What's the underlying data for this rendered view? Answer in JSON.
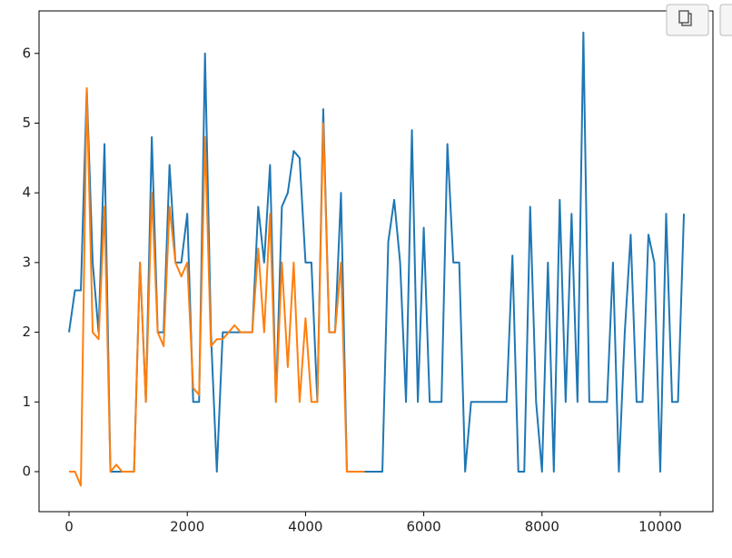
{
  "chart_data": {
    "type": "line",
    "x": [
      0,
      100,
      200,
      300,
      400,
      500,
      600,
      700,
      800,
      900,
      1000,
      1100,
      1200,
      1300,
      1400,
      1500,
      1600,
      1700,
      1800,
      1900,
      2000,
      2100,
      2200,
      2300,
      2400,
      2500,
      2600,
      2700,
      2800,
      2900,
      3000,
      3100,
      3200,
      3300,
      3400,
      3500,
      3600,
      3700,
      3800,
      3900,
      4000,
      4100,
      4200,
      4300,
      4400,
      4500,
      4600,
      4700,
      4800,
      4900,
      5000,
      5100,
      5200,
      5300,
      5400,
      5500,
      5600,
      5700,
      5800,
      5900,
      6000,
      6100,
      6200,
      6300,
      6400,
      6500,
      6600,
      6700,
      6800,
      6900,
      7000,
      7100,
      7200,
      7300,
      7400,
      7500,
      7600,
      7700,
      7800,
      7900,
      8000,
      8100,
      8200,
      8300,
      8400,
      8500,
      8600,
      8700,
      8800,
      8900,
      9000,
      9100,
      9200,
      9300,
      9400,
      9500,
      9600,
      9700,
      9800,
      9900,
      10000,
      10100,
      10200,
      10300,
      10400
    ],
    "series": [
      {
        "color": "#1f77b4",
        "values": [
          2,
          2.6,
          2.6,
          5.5,
          3,
          2,
          4.7,
          0,
          0,
          0,
          0,
          0,
          3,
          1,
          4.8,
          2,
          2,
          4.4,
          3,
          3,
          3.7,
          1,
          1,
          6,
          2,
          0,
          2,
          2,
          2,
          2,
          2,
          2,
          3.8,
          3,
          4.4,
          1,
          3.8,
          4,
          4.6,
          4.5,
          3,
          3,
          1,
          5.2,
          2,
          2,
          4,
          0,
          0,
          0,
          0,
          0,
          0,
          0,
          3.3,
          3.9,
          3,
          1,
          4.9,
          1,
          3.5,
          1,
          1,
          1,
          4.7,
          3,
          3,
          0,
          1,
          1,
          1,
          1,
          1,
          1,
          1,
          3.1,
          0,
          0,
          3.8,
          1,
          0,
          3,
          0,
          3.9,
          1,
          3.7,
          1,
          6.3,
          1,
          1,
          1,
          1,
          3,
          0,
          2,
          3.4,
          1,
          1,
          3.4,
          3,
          0,
          3.7,
          1,
          1,
          3.7
        ]
      },
      {
        "color": "#ff7f0e",
        "values": [
          0,
          0,
          -0.2,
          5.5,
          2,
          1.9,
          3.8,
          0,
          0.1,
          0,
          0,
          0,
          3,
          1,
          4,
          2,
          1.8,
          3.8,
          3,
          2.8,
          3,
          1.2,
          1.1,
          4.8,
          1.8,
          1.9,
          1.9,
          2,
          2.1,
          2,
          2,
          2,
          3.2,
          2,
          3.7,
          1,
          3,
          1.5,
          3,
          1,
          2.2,
          1,
          1,
          5,
          2,
          2,
          3,
          0,
          0,
          0,
          0,
          null,
          null,
          null,
          null,
          null,
          null,
          null,
          null,
          null,
          null,
          null,
          null,
          null,
          null,
          null,
          null,
          null,
          null,
          null,
          null,
          null,
          null,
          null,
          null,
          null,
          null,
          null,
          null,
          null,
          null,
          null,
          null,
          null,
          null,
          null,
          null,
          null,
          null,
          null,
          null,
          null,
          null,
          null,
          null,
          null,
          null,
          null,
          null,
          null,
          null,
          null,
          null,
          null,
          null
        ]
      }
    ],
    "xlim": [
      -507,
      10891
    ],
    "ylim": [
      -0.574,
      6.61
    ],
    "xticks": [
      0,
      2000,
      4000,
      6000,
      8000,
      10000
    ],
    "yticks": [
      0,
      1,
      2,
      3,
      4,
      5,
      6
    ]
  }
}
